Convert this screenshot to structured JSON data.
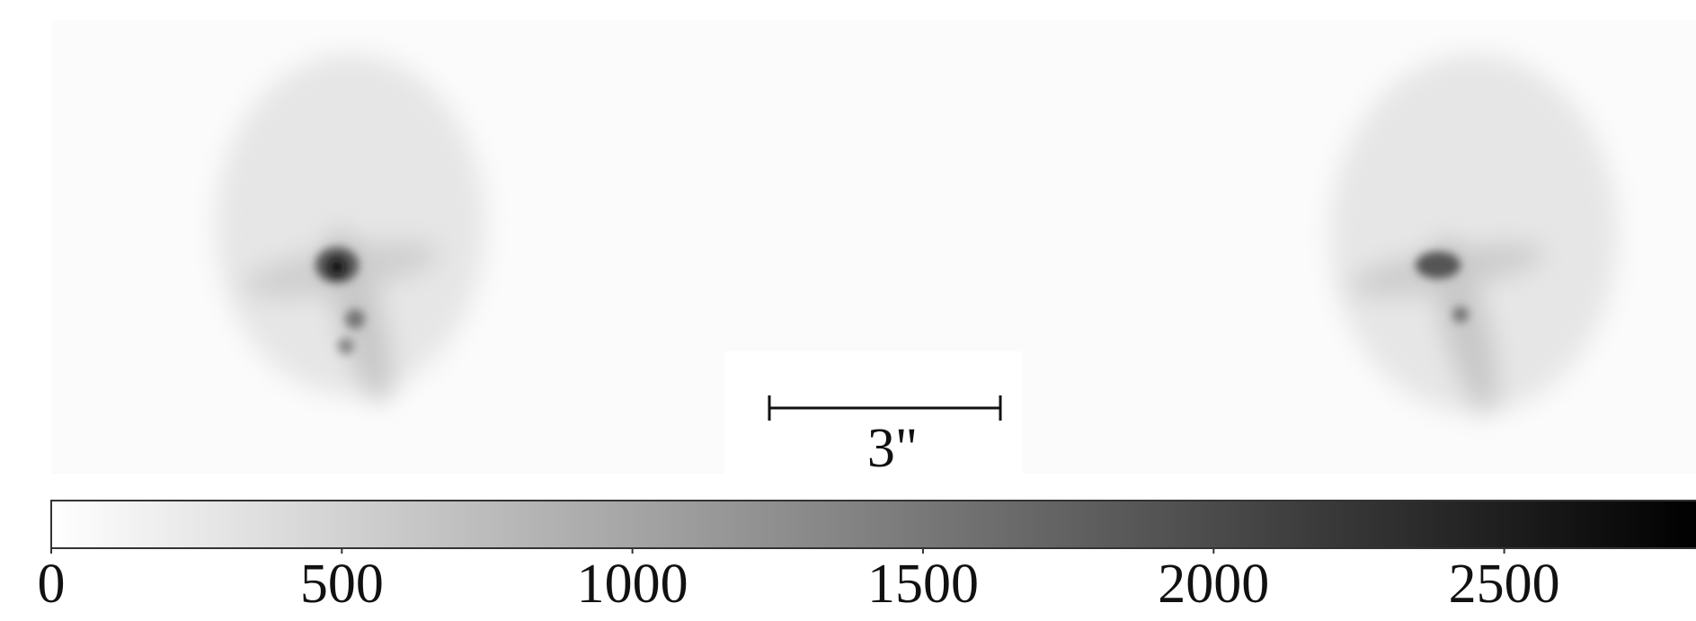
{
  "chart_data": {
    "type": "colorbar",
    "scale_bar_label": "3\"",
    "colormap": [
      "#ffffff",
      "#000000"
    ],
    "clim": [
      0,
      2830
    ],
    "ticks": [
      0,
      500,
      1000,
      1500,
      2000,
      2500
    ]
  }
}
